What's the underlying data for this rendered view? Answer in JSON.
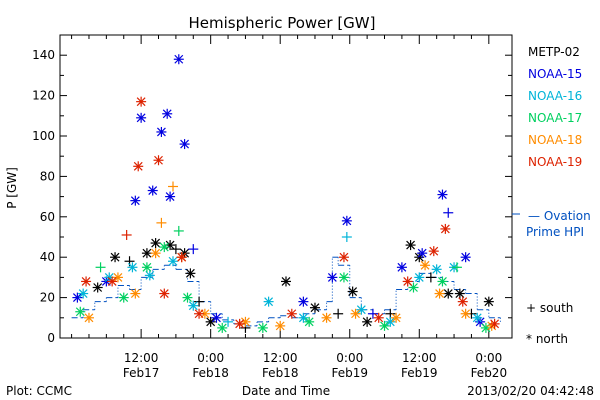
{
  "chart_data": {
    "type": "scatter",
    "title": "Hemispheric Power [GW]",
    "xlabel": "Date and Time",
    "ylabel": "P [GW]",
    "ylim": [
      0,
      150
    ],
    "xlim_hours": [
      0,
      72
    ],
    "xticks": [
      {
        "pos": 12,
        "top": "12:00",
        "bottom": "Feb17"
      },
      {
        "pos": 24,
        "top": "0:00",
        "bottom": "Feb18"
      },
      {
        "pos": 36,
        "top": "12:00",
        "bottom": "Feb18"
      },
      {
        "pos": 48,
        "top": "0:00",
        "bottom": "Feb19"
      },
      {
        "pos": 60,
        "top": "12:00",
        "bottom": "Feb19"
      },
      {
        "pos": 72,
        "top": "0:00",
        "bottom": "Feb20"
      }
    ],
    "yticks": [
      0,
      20,
      40,
      60,
      80,
      100,
      120,
      140
    ],
    "ovation_label_lines": [
      "— Ovation",
      "Prime HPI"
    ],
    "marker_key": {
      "south": "+ south",
      "north": "* north"
    },
    "footer_left": "Plot: CCMC",
    "footer_right": "2013/02/20 04:42:48",
    "series": [
      {
        "name": "METP-02",
        "color": "#000000",
        "points": [
          {
            "x": 4.5,
            "y": 25,
            "m": "north"
          },
          {
            "x": 7.5,
            "y": 40,
            "m": "north"
          },
          {
            "x": 10,
            "y": 38,
            "m": "south"
          },
          {
            "x": 13,
            "y": 42,
            "m": "north"
          },
          {
            "x": 14.5,
            "y": 47,
            "m": "north"
          },
          {
            "x": 17,
            "y": 46,
            "m": "north"
          },
          {
            "x": 18,
            "y": 44,
            "m": "south"
          },
          {
            "x": 19.5,
            "y": 42,
            "m": "north"
          },
          {
            "x": 20.5,
            "y": 32,
            "m": "north"
          },
          {
            "x": 22,
            "y": 18,
            "m": "south"
          },
          {
            "x": 24,
            "y": 8,
            "m": "north"
          },
          {
            "x": 30,
            "y": 5,
            "m": "south"
          },
          {
            "x": 37,
            "y": 28,
            "m": "north"
          },
          {
            "x": 42,
            "y": 15,
            "m": "north"
          },
          {
            "x": 46,
            "y": 12,
            "m": "south"
          },
          {
            "x": 48.5,
            "y": 23,
            "m": "north"
          },
          {
            "x": 51,
            "y": 8,
            "m": "north"
          },
          {
            "x": 55,
            "y": 12,
            "m": "south"
          },
          {
            "x": 58.5,
            "y": 46,
            "m": "north"
          },
          {
            "x": 60,
            "y": 40,
            "m": "north"
          },
          {
            "x": 62,
            "y": 30,
            "m": "south"
          },
          {
            "x": 65,
            "y": 22,
            "m": "north"
          },
          {
            "x": 67,
            "y": 22,
            "m": "north"
          },
          {
            "x": 69,
            "y": 12,
            "m": "south"
          },
          {
            "x": 72,
            "y": 18,
            "m": "north"
          }
        ]
      },
      {
        "name": "NOAA-15",
        "color": "#0000e0",
        "points": [
          {
            "x": 1,
            "y": 20,
            "m": "north"
          },
          {
            "x": 6,
            "y": 28,
            "m": "north"
          },
          {
            "x": 11,
            "y": 68,
            "m": "north"
          },
          {
            "x": 12,
            "y": 109,
            "m": "north"
          },
          {
            "x": 14,
            "y": 73,
            "m": "north"
          },
          {
            "x": 15.5,
            "y": 102,
            "m": "north"
          },
          {
            "x": 16.5,
            "y": 111,
            "m": "north"
          },
          {
            "x": 17,
            "y": 70,
            "m": "north"
          },
          {
            "x": 18.5,
            "y": 138,
            "m": "north"
          },
          {
            "x": 19.5,
            "y": 96,
            "m": "north"
          },
          {
            "x": 21,
            "y": 44,
            "m": "south"
          },
          {
            "x": 25,
            "y": 10,
            "m": "north"
          },
          {
            "x": 40,
            "y": 18,
            "m": "north"
          },
          {
            "x": 45,
            "y": 30,
            "m": "north"
          },
          {
            "x": 47.5,
            "y": 58,
            "m": "north"
          },
          {
            "x": 52,
            "y": 12,
            "m": "south"
          },
          {
            "x": 57,
            "y": 35,
            "m": "north"
          },
          {
            "x": 60.5,
            "y": 42,
            "m": "north"
          },
          {
            "x": 64,
            "y": 71,
            "m": "north"
          },
          {
            "x": 65,
            "y": 62,
            "m": "south"
          },
          {
            "x": 68,
            "y": 40,
            "m": "north"
          },
          {
            "x": 70.5,
            "y": 8,
            "m": "north"
          }
        ]
      },
      {
        "name": "NOAA-16",
        "color": "#00b4d8",
        "points": [
          {
            "x": 2,
            "y": 22,
            "m": "north"
          },
          {
            "x": 6.5,
            "y": 30,
            "m": "north"
          },
          {
            "x": 10.5,
            "y": 35,
            "m": "north"
          },
          {
            "x": 13.5,
            "y": 31,
            "m": "north"
          },
          {
            "x": 17.5,
            "y": 38,
            "m": "north"
          },
          {
            "x": 21,
            "y": 16,
            "m": "north"
          },
          {
            "x": 27,
            "y": 8,
            "m": "south"
          },
          {
            "x": 34,
            "y": 18,
            "m": "north"
          },
          {
            "x": 40,
            "y": 10,
            "m": "north"
          },
          {
            "x": 47.5,
            "y": 50,
            "m": "south"
          },
          {
            "x": 50,
            "y": 14,
            "m": "north"
          },
          {
            "x": 55,
            "y": 8,
            "m": "north"
          },
          {
            "x": 60,
            "y": 30,
            "m": "north"
          },
          {
            "x": 63,
            "y": 34,
            "m": "north"
          },
          {
            "x": 66,
            "y": 35,
            "m": "north"
          },
          {
            "x": 70,
            "y": 10,
            "m": "north"
          }
        ]
      },
      {
        "name": "NOAA-17",
        "color": "#00d060",
        "points": [
          {
            "x": 1.5,
            "y": 13,
            "m": "north"
          },
          {
            "x": 5,
            "y": 35,
            "m": "south"
          },
          {
            "x": 9,
            "y": 20,
            "m": "north"
          },
          {
            "x": 13,
            "y": 35,
            "m": "north"
          },
          {
            "x": 16,
            "y": 45,
            "m": "north"
          },
          {
            "x": 18.5,
            "y": 53,
            "m": "south"
          },
          {
            "x": 20,
            "y": 20,
            "m": "north"
          },
          {
            "x": 26,
            "y": 5,
            "m": "north"
          },
          {
            "x": 33,
            "y": 5,
            "m": "north"
          },
          {
            "x": 41,
            "y": 8,
            "m": "north"
          },
          {
            "x": 47,
            "y": 30,
            "m": "north"
          },
          {
            "x": 54,
            "y": 6,
            "m": "north"
          },
          {
            "x": 59,
            "y": 25,
            "m": "north"
          },
          {
            "x": 64,
            "y": 28,
            "m": "north"
          },
          {
            "x": 66.5,
            "y": 35,
            "m": "south"
          },
          {
            "x": 71.5,
            "y": 5,
            "m": "north"
          }
        ]
      },
      {
        "name": "NOAA-18",
        "color": "#ff8c00",
        "points": [
          {
            "x": 3,
            "y": 10,
            "m": "north"
          },
          {
            "x": 8,
            "y": 30,
            "m": "north"
          },
          {
            "x": 11,
            "y": 22,
            "m": "north"
          },
          {
            "x": 14.5,
            "y": 42,
            "m": "north"
          },
          {
            "x": 15.5,
            "y": 57,
            "m": "south"
          },
          {
            "x": 17.5,
            "y": 75,
            "m": "south"
          },
          {
            "x": 19,
            "y": 40,
            "m": "north"
          },
          {
            "x": 23,
            "y": 12,
            "m": "north"
          },
          {
            "x": 30,
            "y": 8,
            "m": "north"
          },
          {
            "x": 36,
            "y": 6,
            "m": "north"
          },
          {
            "x": 44,
            "y": 10,
            "m": "north"
          },
          {
            "x": 49,
            "y": 12,
            "m": "north"
          },
          {
            "x": 56,
            "y": 10,
            "m": "north"
          },
          {
            "x": 61,
            "y": 36,
            "m": "north"
          },
          {
            "x": 63.5,
            "y": 22,
            "m": "north"
          },
          {
            "x": 68,
            "y": 12,
            "m": "north"
          },
          {
            "x": 72.5,
            "y": 6,
            "m": "north"
          }
        ]
      },
      {
        "name": "NOAA-19",
        "color": "#dd2200",
        "points": [
          {
            "x": 2.5,
            "y": 28,
            "m": "north"
          },
          {
            "x": 7,
            "y": 28,
            "m": "north"
          },
          {
            "x": 9.5,
            "y": 51,
            "m": "south"
          },
          {
            "x": 11.5,
            "y": 85,
            "m": "north"
          },
          {
            "x": 12,
            "y": 117,
            "m": "north"
          },
          {
            "x": 15,
            "y": 88,
            "m": "north"
          },
          {
            "x": 16,
            "y": 22,
            "m": "north"
          },
          {
            "x": 19,
            "y": 40,
            "m": "north"
          },
          {
            "x": 22,
            "y": 12,
            "m": "north"
          },
          {
            "x": 29,
            "y": 7,
            "m": "north"
          },
          {
            "x": 38,
            "y": 12,
            "m": "north"
          },
          {
            "x": 47,
            "y": 40,
            "m": "north"
          },
          {
            "x": 53,
            "y": 10,
            "m": "north"
          },
          {
            "x": 58,
            "y": 28,
            "m": "north"
          },
          {
            "x": 62.5,
            "y": 43,
            "m": "north"
          },
          {
            "x": 64.5,
            "y": 54,
            "m": "north"
          },
          {
            "x": 67.5,
            "y": 18,
            "m": "north"
          },
          {
            "x": 73,
            "y": 7,
            "m": "north"
          }
        ]
      }
    ],
    "ovation_series": {
      "name": "Ovation Prime HPI",
      "color": "#0050c0",
      "x": [
        0,
        2,
        4,
        6,
        8,
        10,
        12,
        14,
        16,
        18,
        20,
        22,
        24,
        26,
        28,
        30,
        32,
        34,
        36,
        38,
        40,
        42,
        44,
        45,
        46,
        48,
        50,
        52,
        54,
        56,
        58,
        60,
        62,
        64,
        66,
        68,
        70,
        72,
        74
      ],
      "y": [
        10,
        14,
        18,
        20,
        26,
        24,
        30,
        34,
        36,
        34,
        28,
        18,
        12,
        9,
        7,
        6,
        8,
        10,
        11,
        10,
        12,
        14,
        18,
        40,
        36,
        20,
        14,
        12,
        14,
        24,
        28,
        32,
        30,
        28,
        24,
        22,
        14,
        10,
        8
      ]
    }
  }
}
